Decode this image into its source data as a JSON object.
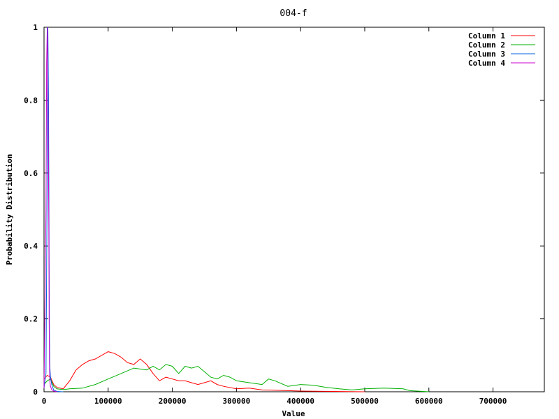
{
  "chart_data": {
    "type": "line",
    "title": "004-f",
    "xlabel": "Value",
    "ylabel": "Probability Distribution",
    "xlim": [
      0,
      780000
    ],
    "ylim": [
      0,
      1
    ],
    "xticks": [
      0,
      100000,
      200000,
      300000,
      400000,
      500000,
      600000,
      700000
    ],
    "xtick_labels": [
      "0",
      "100000",
      "200000",
      "300000",
      "400000",
      "500000",
      "600000",
      "700000"
    ],
    "yticks": [
      0,
      0.2,
      0.4,
      0.6,
      0.8,
      1
    ],
    "ytick_labels": [
      "0",
      "0.2",
      "0.4",
      "0.6",
      "0.8",
      "1"
    ],
    "legend_position": "top-right",
    "grid": false,
    "series": [
      {
        "name": "Column 1",
        "color": "#ff0000",
        "x": [
          0,
          5000,
          10000,
          15000,
          20000,
          30000,
          40000,
          50000,
          60000,
          70000,
          80000,
          90000,
          100000,
          110000,
          120000,
          130000,
          140000,
          150000,
          160000,
          170000,
          180000,
          190000,
          200000,
          210000,
          220000,
          230000,
          240000,
          250000,
          260000,
          270000,
          280000,
          300000,
          320000,
          340000,
          360000,
          380000,
          400000,
          450000,
          500000
        ],
        "values": [
          0.035,
          0.045,
          0.04,
          0.02,
          0.012,
          0.008,
          0.03,
          0.06,
          0.075,
          0.085,
          0.09,
          0.1,
          0.11,
          0.105,
          0.095,
          0.08,
          0.075,
          0.09,
          0.075,
          0.05,
          0.03,
          0.04,
          0.035,
          0.03,
          0.03,
          0.025,
          0.02,
          0.025,
          0.03,
          0.02,
          0.015,
          0.008,
          0.01,
          0.005,
          0.004,
          0.003,
          0.002,
          0.001,
          0.0
        ]
      },
      {
        "name": "Column 2",
        "color": "#00b000",
        "x": [
          0,
          5000,
          10000,
          15000,
          20000,
          30000,
          40000,
          60000,
          80000,
          100000,
          120000,
          140000,
          160000,
          170000,
          180000,
          190000,
          200000,
          210000,
          220000,
          230000,
          240000,
          250000,
          260000,
          270000,
          280000,
          290000,
          300000,
          320000,
          340000,
          350000,
          360000,
          380000,
          400000,
          420000,
          440000,
          460000,
          480000,
          500000,
          530000,
          560000,
          570000,
          600000
        ],
        "values": [
          0.02,
          0.03,
          0.035,
          0.015,
          0.008,
          0.006,
          0.008,
          0.01,
          0.02,
          0.035,
          0.05,
          0.065,
          0.06,
          0.07,
          0.06,
          0.075,
          0.07,
          0.05,
          0.07,
          0.065,
          0.07,
          0.055,
          0.04,
          0.035,
          0.045,
          0.04,
          0.03,
          0.025,
          0.02,
          0.035,
          0.03,
          0.015,
          0.02,
          0.018,
          0.012,
          0.008,
          0.005,
          0.008,
          0.01,
          0.008,
          0.003,
          0.0
        ]
      },
      {
        "name": "Column 3",
        "color": "#0060e0",
        "x": [
          0,
          3000,
          5000,
          6000,
          7000,
          7500,
          8000,
          8500,
          9000,
          10000,
          12000,
          15000,
          20000,
          30000
        ],
        "values": [
          0.01,
          0.05,
          0.6,
          1.0,
          0.81,
          0.6,
          0.36,
          0.15,
          0.07,
          0.04,
          0.02,
          0.005,
          0.001,
          0.0
        ]
      },
      {
        "name": "Column 4",
        "color": "#cc00cc",
        "x": [
          0,
          3000,
          4000,
          5000,
          6000,
          7000,
          7500,
          8000,
          8500,
          9000,
          10000,
          12000,
          15000,
          20000
        ],
        "values": [
          0.01,
          0.5,
          0.9,
          1.0,
          0.86,
          0.6,
          0.44,
          0.2,
          0.08,
          0.03,
          0.015,
          0.006,
          0.002,
          0.0
        ]
      }
    ]
  }
}
